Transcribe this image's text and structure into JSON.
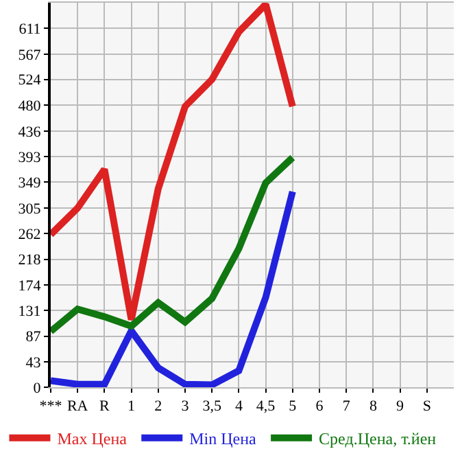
{
  "chart_data": {
    "type": "line",
    "categories": [
      "***",
      "RA",
      "R",
      "1",
      "2",
      "3",
      "3,5",
      "4",
      "4,5",
      "5",
      "6",
      "7",
      "8",
      "9",
      "S",
      null
    ],
    "series": [
      {
        "name": "Max Цена",
        "color": "#dd2222",
        "values": [
          260,
          305,
          371,
          115,
          338,
          478,
          524,
          605,
          652,
          478,
          null,
          null,
          null,
          null,
          null,
          null
        ]
      },
      {
        "name": "Min Цена",
        "color": "#2222dd",
        "values": [
          11,
          5,
          5,
          96,
          33,
          5,
          4,
          28,
          153,
          333,
          null,
          null,
          null,
          null,
          null,
          null
        ]
      },
      {
        "name": "Сред.Цена, т.йен",
        "color": "#117711",
        "values": [
          95,
          133,
          120,
          104,
          144,
          111,
          151,
          236,
          348,
          391,
          null,
          null,
          null,
          null,
          null,
          null
        ]
      }
    ],
    "ylim": [
      0,
      654.6
    ],
    "yticks": [
      0,
      43,
      87,
      131,
      174,
      218,
      262,
      305,
      349,
      393,
      436,
      480,
      524,
      567,
      611
    ],
    "grid": true,
    "legend": "bottom",
    "marker": "none",
    "line_style": "solid"
  }
}
